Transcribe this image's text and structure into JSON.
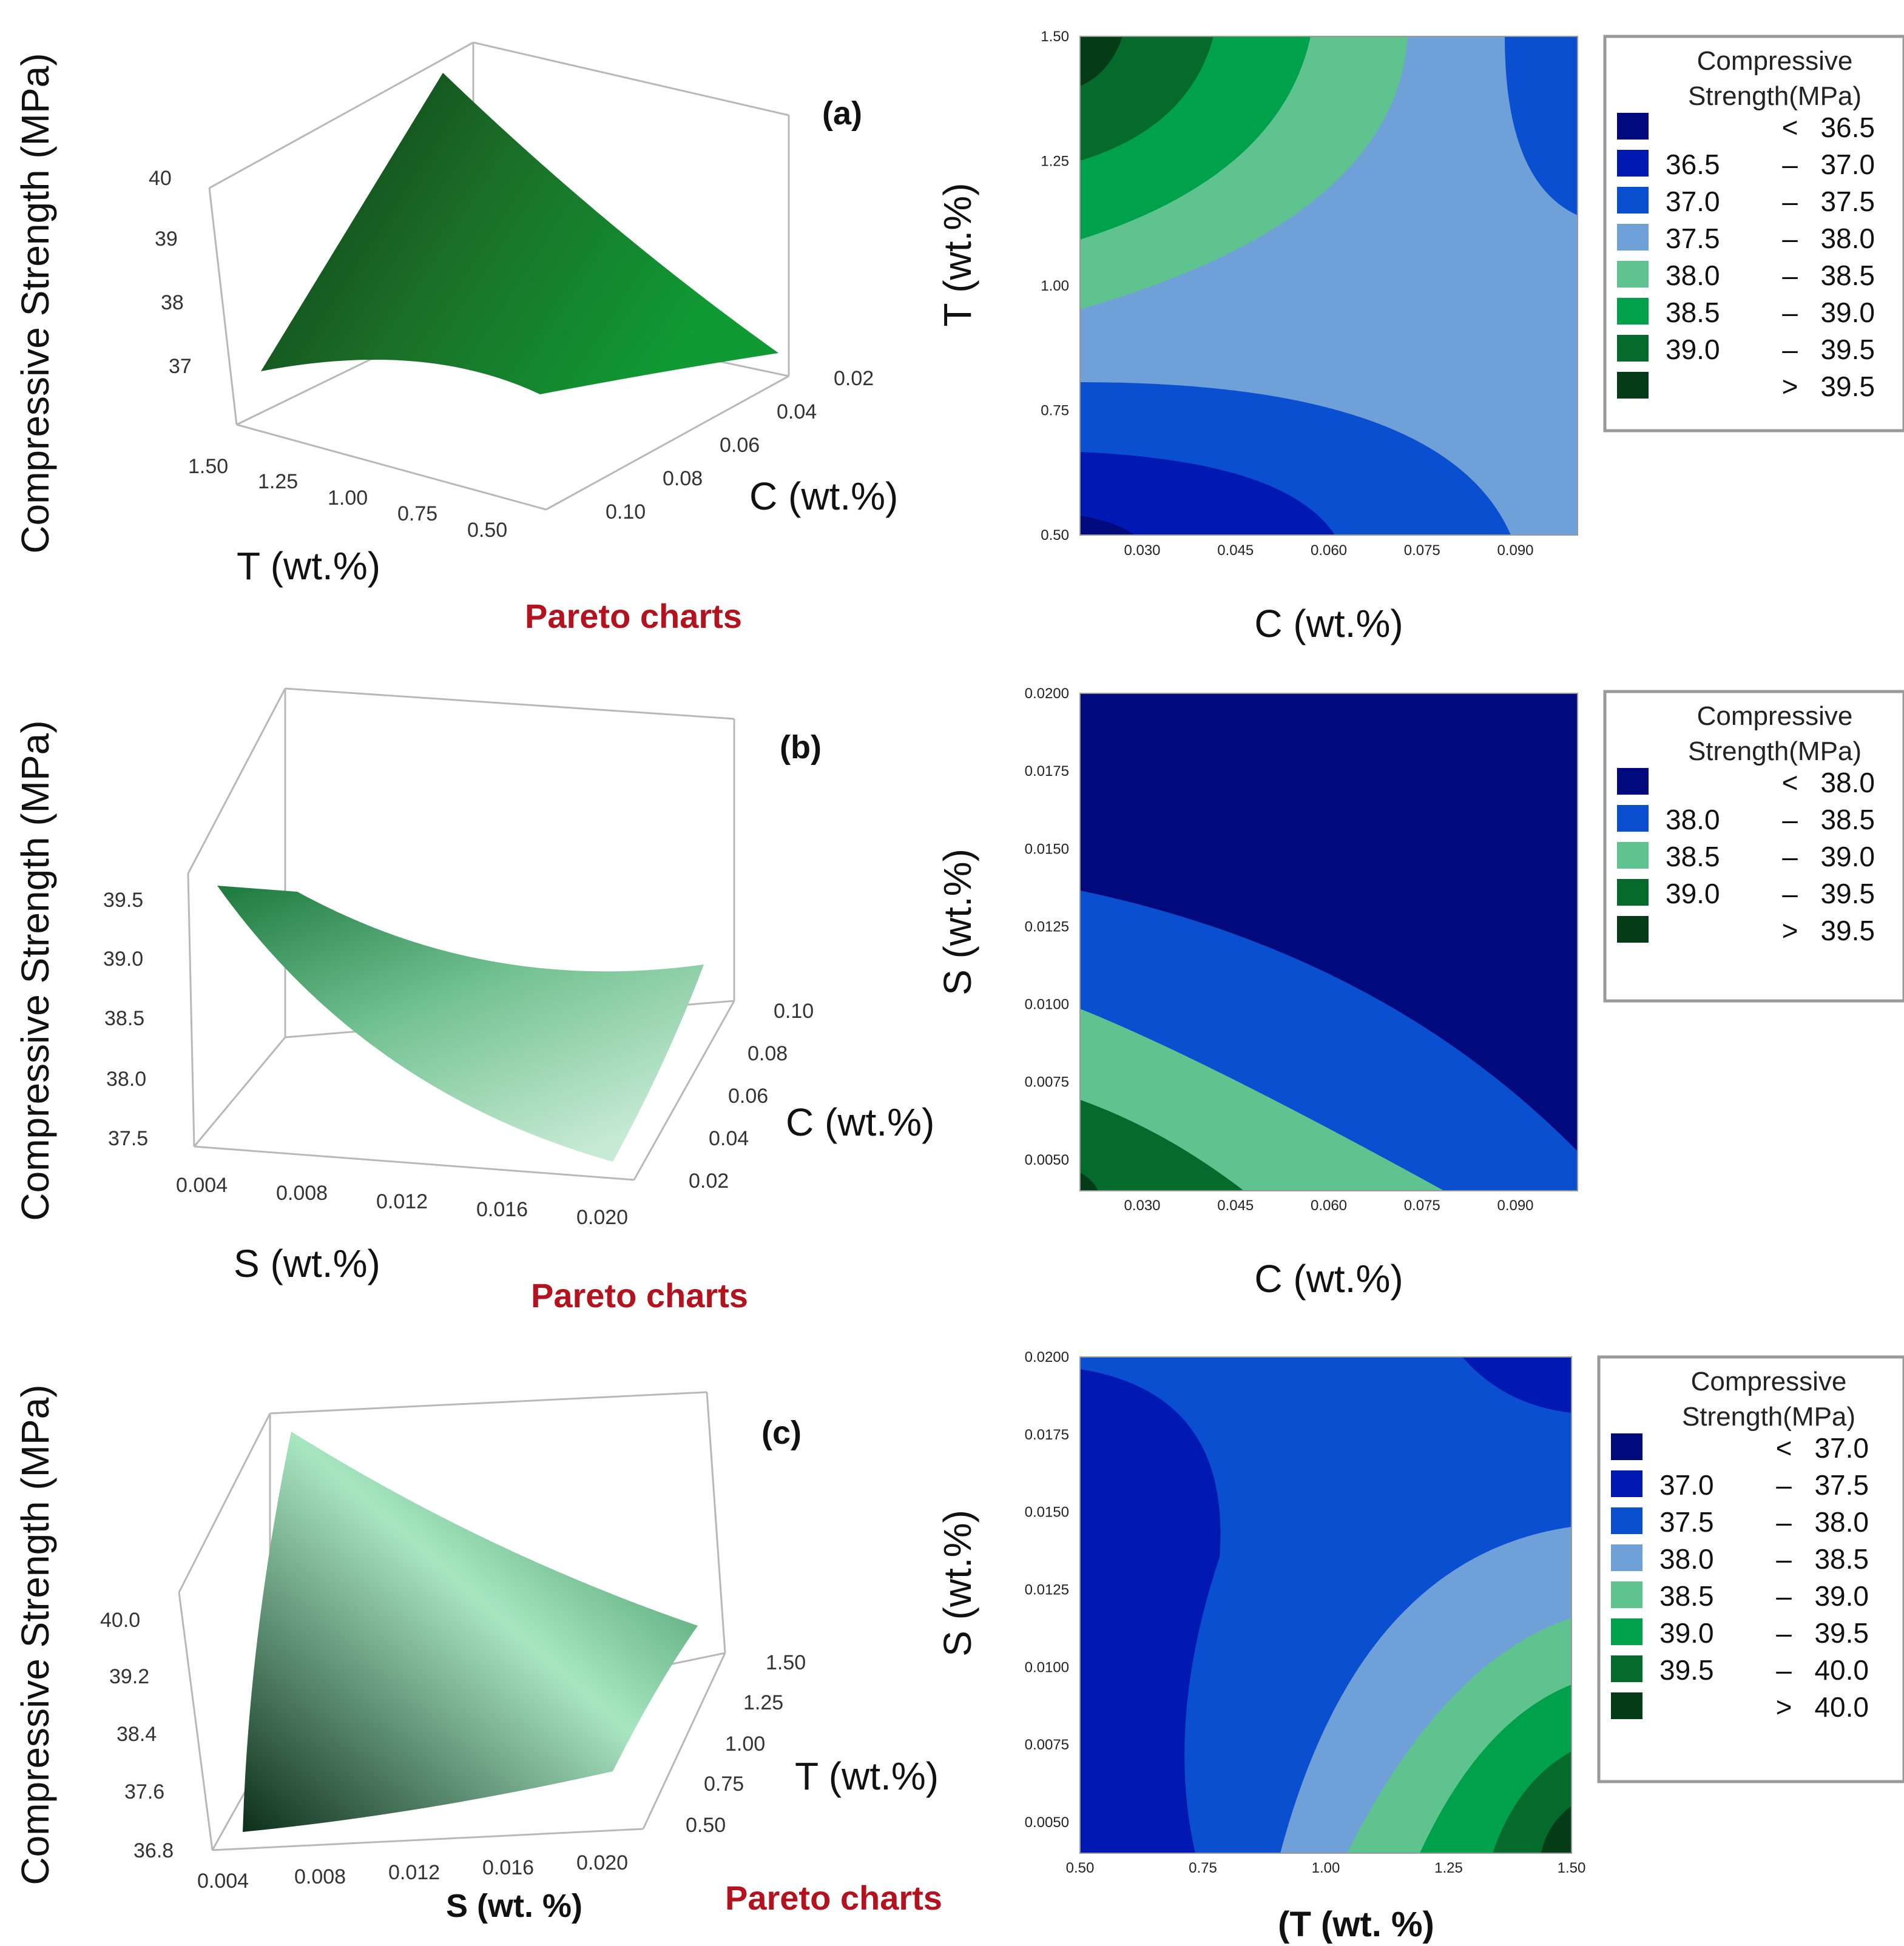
{
  "chart_data": [
    {
      "id": "a",
      "type": "surface",
      "panel_label": "(a)",
      "zlabel": "Compressive Strength (MPa)",
      "xlabel": "T (wt.%)",
      "ylabel": "C (wt.%)",
      "caption": "Pareto charts",
      "x_ticks": [
        "1.50",
        "1.25",
        "1.00",
        "0.75",
        "0.50"
      ],
      "y_ticks": [
        "0.10",
        "0.08",
        "0.06",
        "0.04",
        "0.02"
      ],
      "z_ticks": [
        "40",
        "39",
        "38",
        "37"
      ],
      "surface_colors": [
        "#0c3a12",
        "#1b6e28",
        "#0f9a33"
      ]
    },
    {
      "id": "a-contour",
      "type": "contour",
      "xlabel": "C (wt.%)",
      "ylabel": "T (wt.%)",
      "xlim": [
        0.02,
        0.1
      ],
      "ylim": [
        0.5,
        1.5
      ],
      "x_ticks": [
        0.03,
        0.045,
        0.06,
        0.075,
        0.09
      ],
      "x_tick_labels": [
        "0.030",
        "0.045",
        "0.060",
        "0.075",
        "0.090"
      ],
      "y_ticks": [
        0.5,
        0.75,
        1.0,
        1.25,
        1.5
      ],
      "y_tick_labels": [
        "0.50",
        "0.75",
        "1.00",
        "1.25",
        "1.50"
      ],
      "legend": {
        "title_lines": [
          "Compressive",
          "Strength(MPa)"
        ],
        "items": [
          {
            "lo": "",
            "sep": "<",
            "hi": "36.5",
            "color": "#000a7c"
          },
          {
            "lo": "36.5",
            "sep": "–",
            "hi": "37.0",
            "color": "#0019b3"
          },
          {
            "lo": "37.0",
            "sep": "–",
            "hi": "37.5",
            "color": "#0a4fcf"
          },
          {
            "lo": "37.5",
            "sep": "–",
            "hi": "38.0",
            "color": "#6fa0d8"
          },
          {
            "lo": "38.0",
            "sep": "–",
            "hi": "38.5",
            "color": "#5ec38e"
          },
          {
            "lo": "38.5",
            "sep": "–",
            "hi": "39.0",
            "color": "#00a14b"
          },
          {
            "lo": "39.0",
            "sep": "–",
            "hi": "39.5",
            "color": "#046b2c"
          },
          {
            "lo": "",
            "sep": ">",
            "hi": "39.5",
            "color": "#033c17"
          }
        ]
      }
    },
    {
      "id": "b",
      "type": "surface",
      "panel_label": "(b)",
      "zlabel": "Compressive Strength (MPa)",
      "xlabel": "S (wt.%)",
      "ylabel": "C (wt.%)",
      "caption": "Pareto charts",
      "x_ticks": [
        "0.004",
        "0.008",
        "0.012",
        "0.016",
        "0.020"
      ],
      "y_ticks": [
        "0.02",
        "0.04",
        "0.06",
        "0.08",
        "0.10"
      ],
      "z_ticks": [
        "39.5",
        "39.0",
        "38.5",
        "38.0",
        "37.5"
      ],
      "surface_colors": [
        "#1c7a3d",
        "#74c293",
        "#c6ead3"
      ]
    },
    {
      "id": "b-contour",
      "type": "contour",
      "xlabel": "C (wt.%)",
      "ylabel": "S (wt.%)",
      "xlim": [
        0.02,
        0.1
      ],
      "ylim": [
        0.004,
        0.02
      ],
      "x_ticks": [
        0.03,
        0.045,
        0.06,
        0.075,
        0.09
      ],
      "x_tick_labels": [
        "0.030",
        "0.045",
        "0.060",
        "0.075",
        "0.090"
      ],
      "y_ticks": [
        0.005,
        0.0075,
        0.01,
        0.0125,
        0.015,
        0.0175,
        0.02
      ],
      "y_tick_labels": [
        "0.0050",
        "0.0075",
        "0.0100",
        "0.0125",
        "0.0150",
        "0.0175",
        "0.0200"
      ],
      "legend": {
        "title_lines": [
          "Compressive",
          "Strength(MPa)"
        ],
        "items": [
          {
            "lo": "",
            "sep": "<",
            "hi": "38.0",
            "color": "#000a7c"
          },
          {
            "lo": "38.0",
            "sep": "–",
            "hi": "38.5",
            "color": "#0a4fcf"
          },
          {
            "lo": "38.5",
            "sep": "–",
            "hi": "39.0",
            "color": "#5ec38e"
          },
          {
            "lo": "39.0",
            "sep": "–",
            "hi": "39.5",
            "color": "#046b2c"
          },
          {
            "lo": "",
            "sep": ">",
            "hi": "39.5",
            "color": "#033c17"
          }
        ]
      }
    },
    {
      "id": "c",
      "type": "surface",
      "panel_label": "(c)",
      "zlabel": "Compressive Strength (MPa)",
      "xlabel": "S (wt. %)",
      "ylabel": "T (wt.%)",
      "caption": "Pareto charts",
      "x_ticks": [
        "0.004",
        "0.008",
        "0.012",
        "0.016",
        "0.020"
      ],
      "y_ticks": [
        "0.50",
        "0.75",
        "1.00",
        "1.25",
        "1.50"
      ],
      "z_ticks": [
        "40.0",
        "39.2",
        "38.4",
        "37.6",
        "36.8"
      ],
      "surface_colors": [
        "#0d2f1a",
        "#a8e6c2",
        "#1f7e45"
      ]
    },
    {
      "id": "c-contour",
      "type": "contour",
      "xlabel": "(T (wt. %)",
      "ylabel": "S (wt.%)",
      "xlim": [
        0.5,
        1.5
      ],
      "ylim": [
        0.004,
        0.02
      ],
      "x_ticks": [
        0.5,
        0.75,
        1.0,
        1.25,
        1.5
      ],
      "x_tick_labels": [
        "0.50",
        "0.75",
        "1.00",
        "1.25",
        "1.50"
      ],
      "y_ticks": [
        0.005,
        0.0075,
        0.01,
        0.0125,
        0.015,
        0.0175,
        0.02
      ],
      "y_tick_labels": [
        "0.0050",
        "0.0075",
        "0.0100",
        "0.0125",
        "0.0150",
        "0.0175",
        "0.0200"
      ],
      "legend": {
        "title_lines": [
          "Compressive",
          "Strength(MPa)"
        ],
        "items": [
          {
            "lo": "",
            "sep": "<",
            "hi": "37.0",
            "color": "#000a7c"
          },
          {
            "lo": "37.0",
            "sep": "–",
            "hi": "37.5",
            "color": "#0019b3"
          },
          {
            "lo": "37.5",
            "sep": "–",
            "hi": "38.0",
            "color": "#0a4fcf"
          },
          {
            "lo": "38.0",
            "sep": "–",
            "hi": "38.5",
            "color": "#6fa0d8"
          },
          {
            "lo": "38.5",
            "sep": "–",
            "hi": "39.0",
            "color": "#5ec38e"
          },
          {
            "lo": "39.0",
            "sep": "–",
            "hi": "39.5",
            "color": "#00a14b"
          },
          {
            "lo": "39.5",
            "sep": "–",
            "hi": "40.0",
            "color": "#046b2c"
          },
          {
            "lo": "",
            "sep": ">",
            "hi": "40.0",
            "color": "#033c17"
          }
        ]
      }
    }
  ]
}
